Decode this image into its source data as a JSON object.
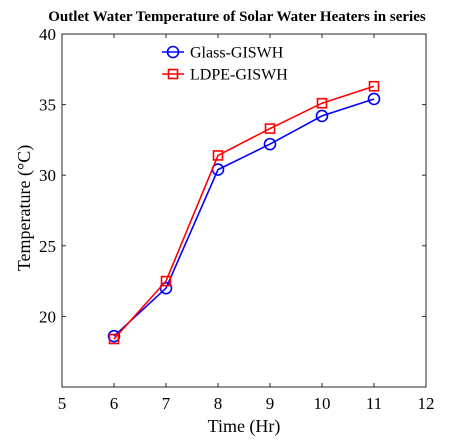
{
  "chart_data": {
    "type": "line",
    "title": "Outlet Water Temperature of Solar Water Heaters in series",
    "xlabel": "Time (Hr)",
    "ylabel": "Temperature (°C)",
    "xlim": [
      5,
      12
    ],
    "ylim": [
      15,
      40
    ],
    "x_ticks": [
      5,
      6,
      7,
      8,
      9,
      10,
      11,
      12
    ],
    "y_ticks": [
      20,
      25,
      30,
      35,
      40
    ],
    "x": [
      6,
      7,
      8,
      9,
      10,
      11
    ],
    "series": [
      {
        "name": "Glass-GISWH",
        "values": [
          18.6,
          22.0,
          30.4,
          32.2,
          34.2,
          35.4
        ],
        "color": "#0000ff",
        "marker": "circle"
      },
      {
        "name": "LDPE-GISWH",
        "values": [
          18.4,
          22.5,
          31.4,
          33.3,
          35.1,
          36.3
        ],
        "color": "#ff0000",
        "marker": "square"
      }
    ],
    "legend_position": "top-center",
    "grid": false
  }
}
